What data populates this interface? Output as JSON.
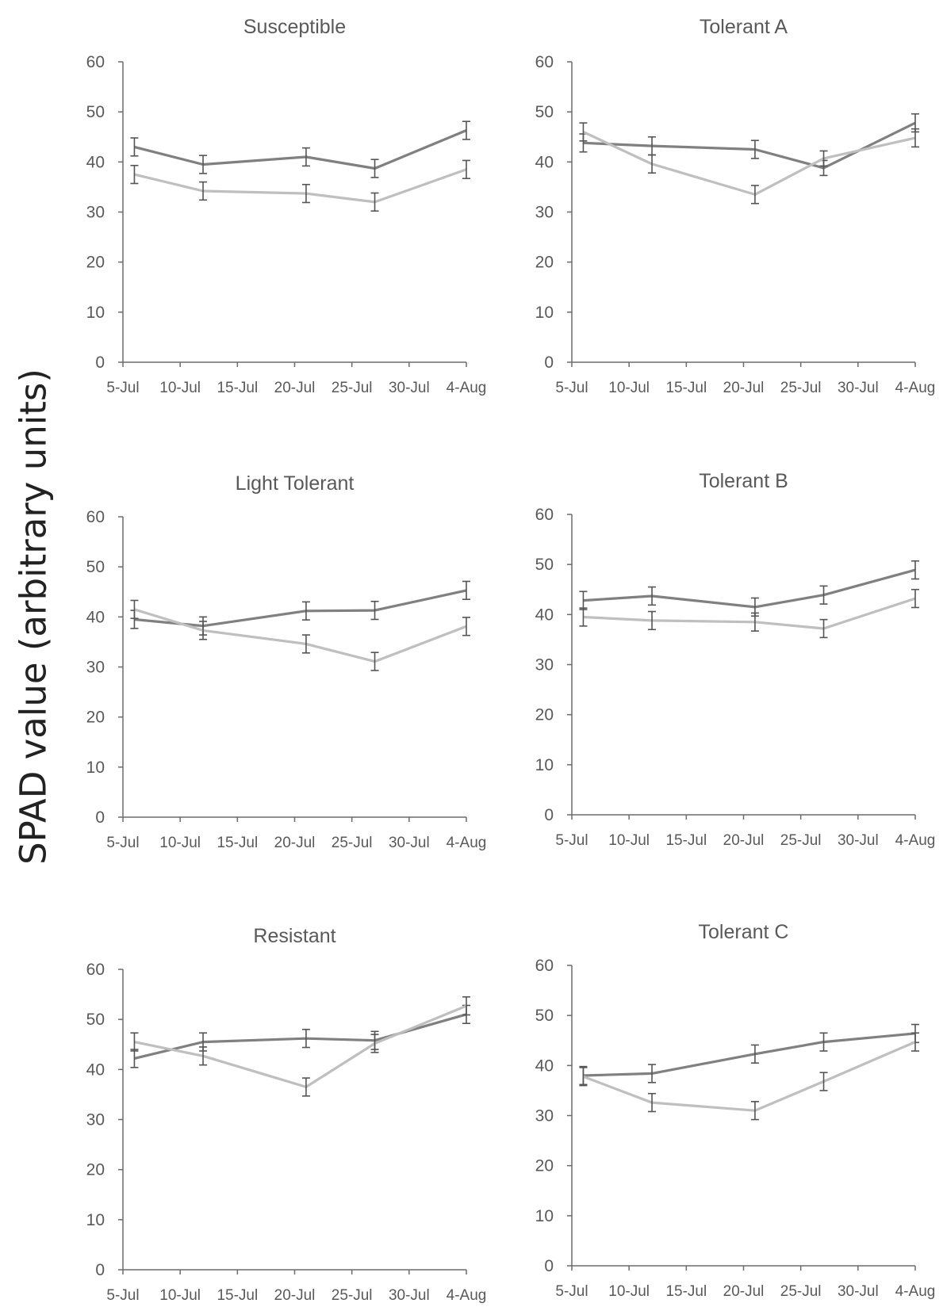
{
  "figure": {
    "ylabel": "SPAD value (arbitrary units)"
  },
  "colors": {
    "series_dark": "#808080",
    "series_light": "#bfbfbf",
    "axis": "#6b6b6b",
    "text": "#595959"
  },
  "chart_data": [
    {
      "type": "line",
      "title": "Susceptible",
      "x": [
        "2019-07-06",
        "2019-07-12",
        "2019-07-21",
        "2019-07-27",
        "2019-08-04"
      ],
      "xticks": [
        "5-Jul",
        "10-Jul",
        "15-Jul",
        "20-Jul",
        "25-Jul",
        "30-Jul",
        "4-Aug"
      ],
      "yticks": [
        "0",
        "10",
        "20",
        "30",
        "40",
        "50",
        "60"
      ],
      "ylim": [
        0,
        60
      ],
      "grid": false,
      "series": [
        {
          "values": [
            43,
            39.5,
            41,
            38.7,
            46.3
          ],
          "errors": [
            1.8,
            1.8,
            1.8,
            1.8,
            1.8
          ]
        },
        {
          "values": [
            37.5,
            34.2,
            33.7,
            32,
            38.5
          ],
          "errors": [
            1.8,
            1.8,
            1.8,
            1.8,
            1.8
          ]
        }
      ]
    },
    {
      "type": "line",
      "title": "Tolerant A",
      "x": [
        "2019-07-06",
        "2019-07-12",
        "2019-07-21",
        "2019-07-27",
        "2019-08-04"
      ],
      "xticks": [
        "5-Jul",
        "10-Jul",
        "15-Jul",
        "20-Jul",
        "25-Jul",
        "30-Jul",
        "4-Aug"
      ],
      "yticks": [
        "0",
        "10",
        "20",
        "30",
        "40",
        "50",
        "60"
      ],
      "ylim": [
        0,
        60
      ],
      "grid": false,
      "series": [
        {
          "values": [
            43.8,
            43.2,
            42.5,
            38.8,
            47.8
          ],
          "errors": [
            1.8,
            1.8,
            1.8,
            1.5,
            1.8
          ]
        },
        {
          "values": [
            46,
            39.6,
            33.5,
            40.7,
            44.8
          ],
          "errors": [
            1.8,
            1.8,
            1.8,
            1.5,
            1.8
          ]
        }
      ]
    },
    {
      "type": "line",
      "title": "Light Tolerant",
      "x": [
        "2019-07-06",
        "2019-07-12",
        "2019-07-21",
        "2019-07-27",
        "2019-08-04"
      ],
      "xticks": [
        "5-Jul",
        "10-Jul",
        "15-Jul",
        "20-Jul",
        "25-Jul",
        "30-Jul",
        "4-Aug"
      ],
      "yticks": [
        "0",
        "10",
        "20",
        "30",
        "40",
        "50",
        "60"
      ],
      "ylim": [
        0,
        60
      ],
      "grid": false,
      "series": [
        {
          "values": [
            39.5,
            38.2,
            41.2,
            41.3,
            45.3
          ],
          "errors": [
            1.8,
            1.8,
            1.8,
            1.8,
            1.8
          ]
        },
        {
          "values": [
            41.5,
            37.3,
            34.6,
            31.1,
            38.1
          ],
          "errors": [
            1.8,
            1.8,
            1.8,
            1.8,
            1.8
          ]
        }
      ]
    },
    {
      "type": "line",
      "title": "Tolerant B",
      "x": [
        "2019-07-06",
        "2019-07-12",
        "2019-07-21",
        "2019-07-27",
        "2019-08-04"
      ],
      "xticks": [
        "5-Jul",
        "10-Jul",
        "15-Jul",
        "20-Jul",
        "25-Jul",
        "30-Jul",
        "4-Aug"
      ],
      "yticks": [
        "0",
        "10",
        "20",
        "30",
        "40",
        "50",
        "60"
      ],
      "ylim": [
        0,
        60
      ],
      "grid": false,
      "series": [
        {
          "values": [
            42.8,
            43.7,
            41.5,
            43.9,
            48.9
          ],
          "errors": [
            1.8,
            1.8,
            1.8,
            1.8,
            1.8
          ]
        },
        {
          "values": [
            39.5,
            38.8,
            38.5,
            37.2,
            43.2
          ],
          "errors": [
            1.8,
            1.8,
            1.8,
            1.8,
            1.8
          ]
        }
      ]
    },
    {
      "type": "line",
      "title": "Resistant",
      "x": [
        "2019-07-06",
        "2019-07-12",
        "2019-07-21",
        "2019-07-27",
        "2019-08-04"
      ],
      "xticks": [
        "5-Jul",
        "10-Jul",
        "15-Jul",
        "20-Jul",
        "25-Jul",
        "30-Jul",
        "4-Aug"
      ],
      "yticks": [
        "0",
        "10",
        "20",
        "30",
        "40",
        "50",
        "60"
      ],
      "ylim": [
        0,
        60
      ],
      "grid": false,
      "series": [
        {
          "values": [
            42.2,
            45.5,
            46.2,
            45.8,
            51
          ],
          "errors": [
            1.8,
            1.8,
            1.8,
            1.8,
            1.8
          ]
        },
        {
          "values": [
            45.5,
            42.7,
            36.5,
            45.2,
            52.7
          ],
          "errors": [
            1.8,
            1.8,
            1.8,
            1.8,
            1.8
          ]
        }
      ]
    },
    {
      "type": "line",
      "title": "Tolerant C",
      "x": [
        "2019-07-06",
        "2019-07-12",
        "2019-07-21",
        "2019-07-27",
        "2019-08-04"
      ],
      "xticks": [
        "5-Jul",
        "10-Jul",
        "15-Jul",
        "20-Jul",
        "25-Jul",
        "30-Jul",
        "4-Aug"
      ],
      "yticks": [
        "0",
        "10",
        "20",
        "30",
        "40",
        "50",
        "60"
      ],
      "ylim": [
        0,
        60
      ],
      "grid": false,
      "series": [
        {
          "values": [
            38,
            38.4,
            42.3,
            44.7,
            46.4
          ],
          "errors": [
            1.8,
            1.8,
            1.8,
            1.8,
            1.8
          ]
        },
        {
          "values": [
            37.8,
            32.6,
            31,
            36.8,
            44.7
          ],
          "errors": [
            1.8,
            1.8,
            1.8,
            1.8,
            1.8
          ]
        }
      ]
    }
  ]
}
